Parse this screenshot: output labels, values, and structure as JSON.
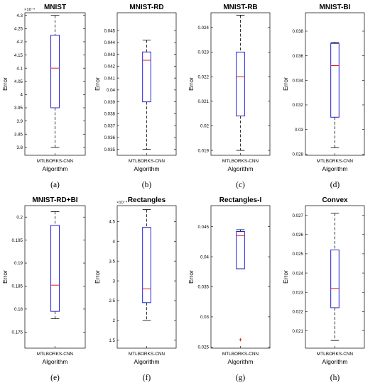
{
  "chart_data": [
    {
      "type": "box",
      "title": "MNIST",
      "xlabel": "Algorithm",
      "ylabel": "Error",
      "categories": [
        "MTLBORKS-CNN"
      ],
      "caption": "(a)",
      "multiplier": "×10⁻³",
      "ylim": [
        3.77,
        4.31
      ],
      "yticks": [
        3.8,
        3.85,
        3.9,
        3.95,
        4.0,
        4.05,
        4.1,
        4.15,
        4.2,
        4.25,
        4.3
      ],
      "ytick_labels": [
        "3.8",
        "3.85",
        "3.9",
        "3.95",
        "4",
        "4.05",
        "4.1",
        "4.15",
        "4.2",
        "4.25",
        "4.3"
      ],
      "box": {
        "min": 3.8,
        "q1": 3.95,
        "median": 4.1,
        "q3": 4.225,
        "max": 4.3
      },
      "outliers": []
    },
    {
      "type": "box",
      "title": "MNIST-RD",
      "xlabel": "Algorithm",
      "ylabel": "Error",
      "categories": [
        "MTLBORKS-CNN"
      ],
      "caption": "(b)",
      "ylim": [
        0.0345,
        0.0465
      ],
      "yticks": [
        0.035,
        0.036,
        0.037,
        0.038,
        0.039,
        0.04,
        0.041,
        0.042,
        0.043,
        0.044,
        0.045
      ],
      "ytick_labels": [
        "0.035",
        "0.036",
        "0.037",
        "0.038",
        "0.039",
        "0.04",
        "0.041",
        "0.042",
        "0.043",
        "0.044",
        "0.045"
      ],
      "box": {
        "min": 0.035,
        "q1": 0.039,
        "median": 0.0425,
        "q3": 0.0432,
        "max": 0.0442
      },
      "outliers": []
    },
    {
      "type": "box",
      "title": "MNIST-RB",
      "xlabel": "Algorithm",
      "ylabel": "Error",
      "categories": [
        "MTLBORKS-CNN"
      ],
      "caption": "(c)",
      "ylim": [
        0.0188,
        0.0246
      ],
      "yticks": [
        0.019,
        0.02,
        0.021,
        0.022,
        0.023,
        0.024
      ],
      "ytick_labels": [
        "0.019",
        "0.02",
        "0.021",
        "0.022",
        "0.023",
        "0.024"
      ],
      "box": {
        "min": 0.019,
        "q1": 0.0204,
        "median": 0.022,
        "q3": 0.023,
        "max": 0.0245
      },
      "outliers": []
    },
    {
      "type": "box",
      "title": "MNIST-BI",
      "xlabel": "Algorithm",
      "ylabel": "Error",
      "categories": [
        "MTLBORKS-CNN"
      ],
      "caption": "(d)",
      "ylim": [
        0.0279,
        0.0395
      ],
      "yticks": [
        0.028,
        0.03,
        0.032,
        0.034,
        0.036,
        0.038
      ],
      "ytick_labels": [
        "0.028",
        "0.03",
        "0.032",
        "0.034",
        "0.036",
        "0.038"
      ],
      "box": {
        "min": 0.0285,
        "q1": 0.031,
        "median": 0.0352,
        "q3": 0.037,
        "max": 0.0371
      },
      "outliers": []
    },
    {
      "type": "box",
      "title": "MNIST-RD+BI",
      "xlabel": "Algorithm",
      "ylabel": "Error",
      "categories": [
        "MTLBORKS-CNN"
      ],
      "caption": "(e)",
      "ylim": [
        0.1715,
        0.2025
      ],
      "yticks": [
        0.175,
        0.18,
        0.185,
        0.19,
        0.195,
        0.2
      ],
      "ytick_labels": [
        "0.175",
        "0.18",
        "0.185",
        "0.19",
        "0.195",
        "0.2"
      ],
      "box": {
        "min": 0.1779,
        "q1": 0.1795,
        "median": 0.1852,
        "q3": 0.1982,
        "max": 0.2012
      },
      "outliers": []
    },
    {
      "type": "box",
      "title": "Rectangles",
      "xlabel": "Algorithm",
      "ylabel": "Error",
      "categories": [
        "MTLBORKS-CNN"
      ],
      "caption": "(f)",
      "multiplier": "×10⁻⁴",
      "ylim": [
        1.3,
        4.9
      ],
      "yticks": [
        1.5,
        2,
        2.5,
        3,
        3.5,
        4,
        4.5
      ],
      "ytick_labels": [
        "1.5",
        "2",
        "2.5",
        "3",
        "3.5",
        "4",
        "4.5"
      ],
      "box": {
        "min": 2.0,
        "q1": 2.45,
        "median": 2.8,
        "q3": 4.35,
        "max": 4.8
      },
      "outliers": []
    },
    {
      "type": "box",
      "title": "Rectangles-I",
      "xlabel": "Algorithm",
      "ylabel": "Error",
      "categories": [
        "MTLBORKS-CNN"
      ],
      "caption": "(g)",
      "ylim": [
        0.0248,
        0.0485
      ],
      "yticks": [
        0.025,
        0.03,
        0.035,
        0.04,
        0.045
      ],
      "ytick_labels": [
        "0.025",
        "0.03",
        "0.035",
        "0.04",
        "0.045"
      ],
      "box": {
        "min": 0.038,
        "q1": 0.038,
        "median": 0.0435,
        "q3": 0.0442,
        "max": 0.0445
      },
      "outliers": [
        0.0262
      ]
    },
    {
      "type": "box",
      "title": "Convex",
      "xlabel": "Algorithm",
      "ylabel": "Error",
      "categories": [
        "MTLBORKS-CNN"
      ],
      "caption": "(h)",
      "ylim": [
        0.0201,
        0.0275
      ],
      "yticks": [
        0.021,
        0.022,
        0.023,
        0.024,
        0.025,
        0.026,
        0.027
      ],
      "ytick_labels": [
        "0.021",
        "0.022",
        "0.023",
        "0.024",
        "0.025",
        "0.026",
        "0.027"
      ],
      "box": {
        "min": 0.0205,
        "q1": 0.0222,
        "median": 0.0232,
        "q3": 0.0252,
        "max": 0.0271
      },
      "outliers": []
    }
  ]
}
